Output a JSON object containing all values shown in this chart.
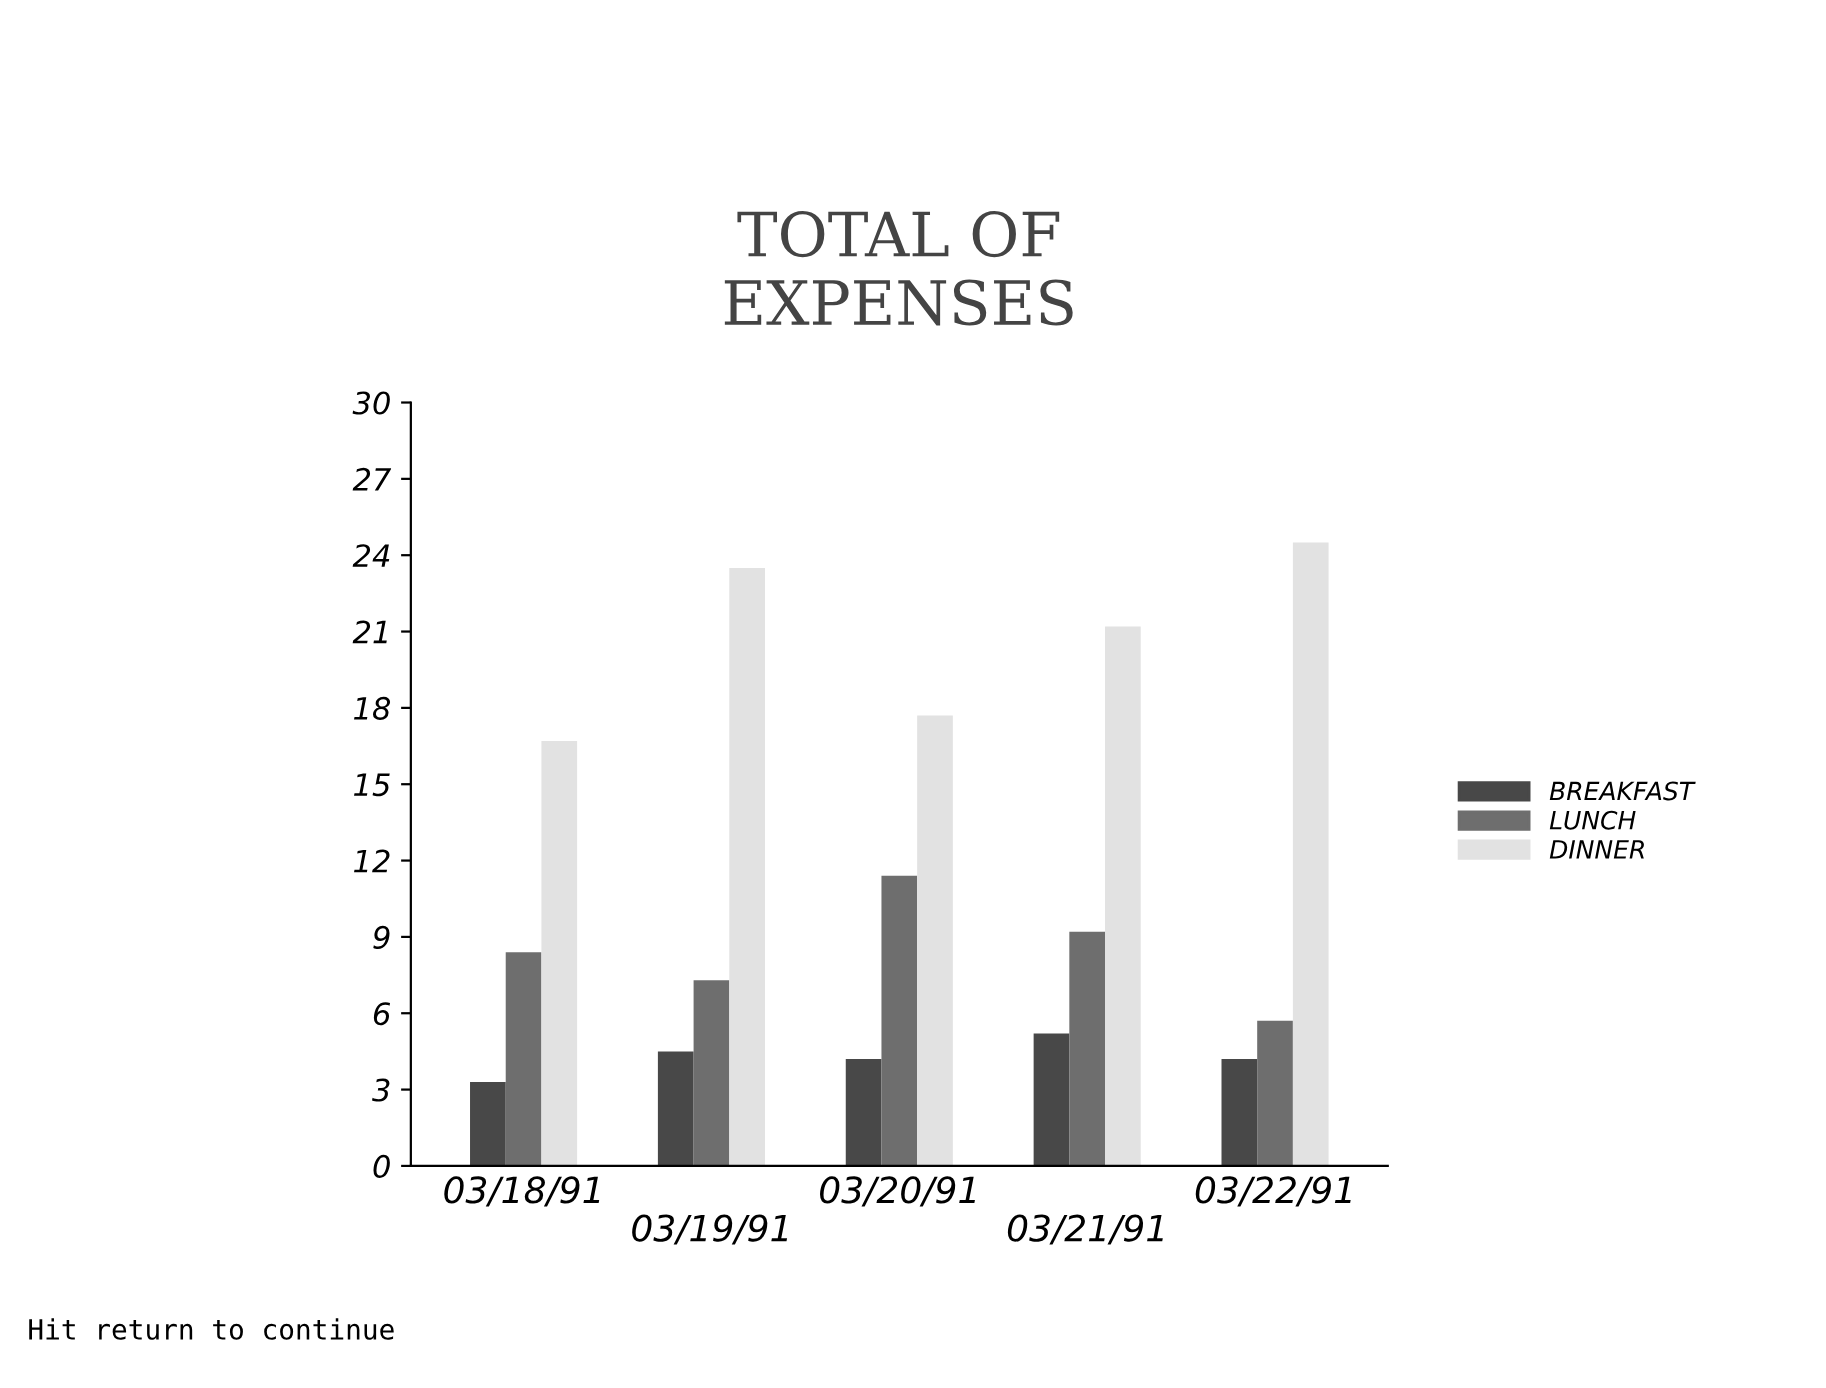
{
  "chart_data": {
    "type": "bar",
    "title": "TOTAL OF\nEXPENSES",
    "categories": [
      "03/18/91",
      "03/19/91",
      "03/20/91",
      "03/21/91",
      "03/22/91"
    ],
    "series": [
      {
        "name": "BREAKFAST",
        "color": "#484848",
        "values": [
          3.3,
          4.5,
          4.2,
          5.2,
          4.2
        ]
      },
      {
        "name": "LUNCH",
        "color": "#6e6e6e",
        "values": [
          8.4,
          7.3,
          11.4,
          9.2,
          5.7
        ]
      },
      {
        "name": "DINNER",
        "color": "#e2e2e2",
        "values": [
          16.7,
          23.5,
          17.7,
          21.2,
          24.5
        ]
      }
    ],
    "ylim": [
      0,
      30
    ],
    "yticks": [
      0,
      3,
      6,
      9,
      12,
      15,
      18,
      21,
      24,
      27,
      30
    ],
    "grid": false,
    "legend": "right",
    "annotations": [
      "Hit return to continue"
    ]
  }
}
